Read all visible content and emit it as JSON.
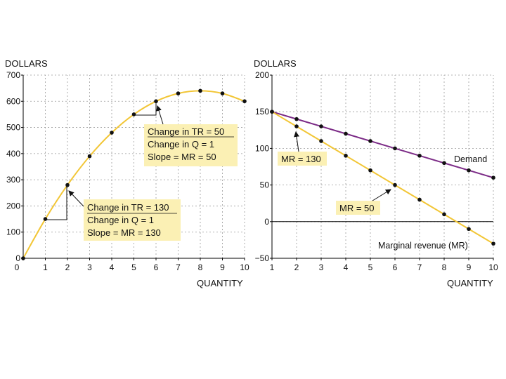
{
  "colors": {
    "yellow": "#f2c636",
    "purple": "#7b2a86",
    "annotation_fill": "#fbf0b4",
    "point": "#111111"
  },
  "chart_data": [
    {
      "type": "line",
      "xlabel": "QUANTITY",
      "ylabel": "DOLLARS",
      "xlim": [
        0,
        10
      ],
      "ylim": [
        0,
        700
      ],
      "xticks": [
        0,
        1,
        2,
        3,
        4,
        5,
        6,
        7,
        8,
        9,
        10
      ],
      "yticks": [
        0,
        100,
        200,
        300,
        400,
        500,
        600,
        700
      ],
      "grid": true,
      "series": [
        {
          "x": [
            0,
            1,
            2,
            3,
            4,
            5,
            6,
            7,
            8,
            9,
            10
          ],
          "values": [
            0,
            150,
            280,
            390,
            480,
            550,
            600,
            630,
            640,
            630,
            600
          ]
        }
      ],
      "annotations": [
        {
          "lines": [
            "Change in TR = 130",
            "Change in Q = 1",
            "Slope = MR = 130"
          ],
          "points_to": [
            2,
            280
          ]
        },
        {
          "lines": [
            "Change in TR = 50",
            "Change in Q = 1",
            "Slope = MR = 50"
          ],
          "points_to": [
            6,
            600
          ]
        }
      ]
    },
    {
      "type": "line",
      "xlabel": "QUANTITY",
      "ylabel": "DOLLARS",
      "xlim": [
        1,
        10
      ],
      "ylim": [
        -50,
        200
      ],
      "xticks": [
        1,
        2,
        3,
        4,
        5,
        6,
        7,
        8,
        9,
        10
      ],
      "yticks": [
        -50,
        0,
        50,
        100,
        150,
        200
      ],
      "grid": true,
      "series": [
        {
          "name": "Demand",
          "x": [
            1,
            2,
            3,
            4,
            5,
            6,
            7,
            8,
            9,
            10
          ],
          "values": [
            150,
            140,
            130,
            120,
            110,
            100,
            90,
            80,
            70,
            60
          ]
        },
        {
          "name": "Marginal revenue (MR)",
          "x": [
            1,
            2,
            3,
            4,
            5,
            6,
            7,
            8,
            9,
            10
          ],
          "values": [
            150,
            130,
            110,
            90,
            70,
            50,
            30,
            10,
            -10,
            -30
          ]
        }
      ],
      "annotations": [
        {
          "label": "MR = 130",
          "points_to": [
            2,
            130
          ]
        },
        {
          "label": "MR = 50",
          "points_to": [
            6,
            50
          ]
        }
      ]
    }
  ]
}
